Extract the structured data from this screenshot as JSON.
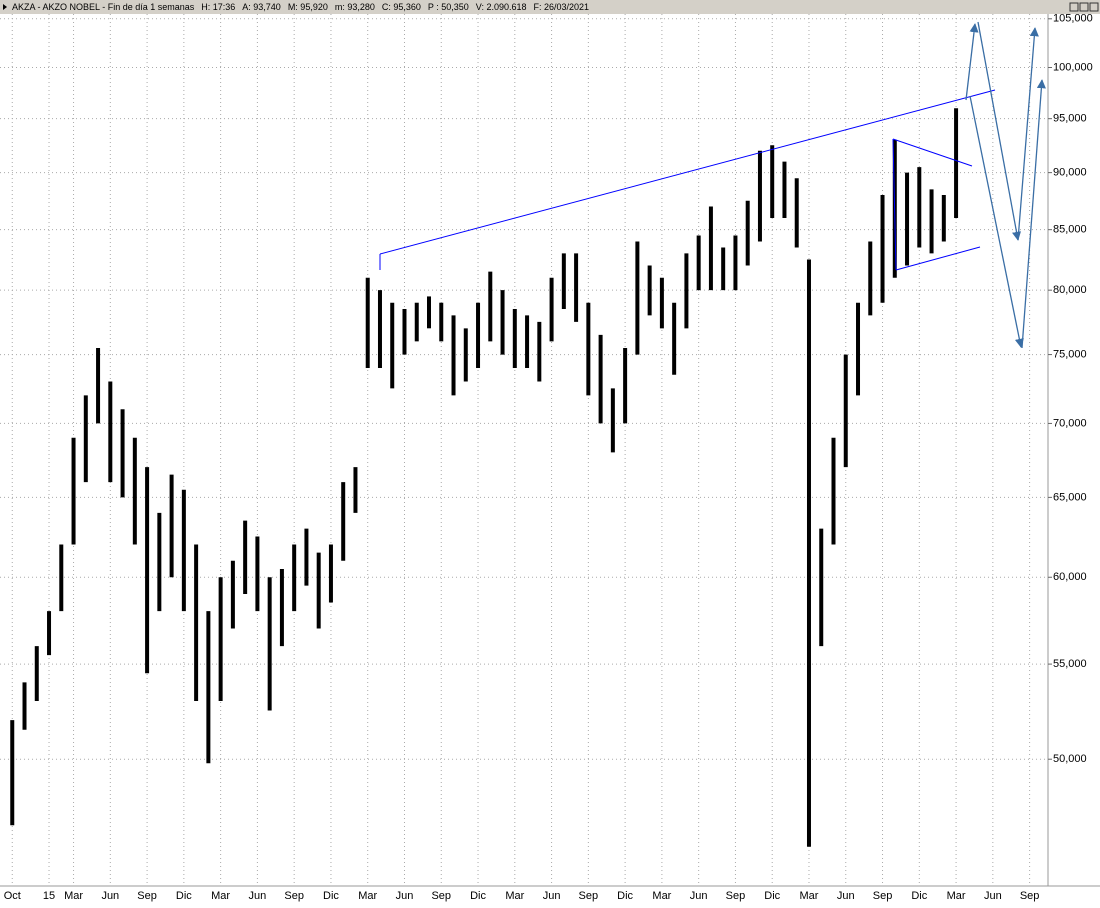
{
  "chart_data": {
    "type": "range-bar",
    "header": [
      "AKZA - AKZO NOBEL - Fin de día 1 semanas",
      "H: 17:36",
      "A: 93,740",
      "M: 95,920",
      "m: 93,280",
      "C: 95,360",
      "P : 50,350",
      "V: 2.090.618",
      "F: 26/03/2021"
    ],
    "color": "#000000",
    "log_scale": true,
    "grid": true,
    "x": [
      0,
      1,
      2,
      3,
      4,
      5,
      6,
      7,
      8,
      9,
      10,
      11,
      12,
      13,
      14,
      15,
      16,
      17,
      18,
      19,
      20,
      21,
      22,
      23,
      24,
      25,
      26,
      27,
      28,
      29,
      30,
      31,
      32,
      33,
      34,
      35,
      36,
      37,
      38,
      39,
      40,
      41,
      42,
      43,
      44,
      45,
      46,
      47,
      48,
      49,
      50,
      51,
      52,
      53,
      54,
      55,
      56,
      57,
      58,
      59,
      60,
      61,
      62,
      63,
      64,
      65,
      66,
      67,
      68,
      69,
      70,
      71,
      72,
      73,
      74,
      75,
      76,
      77
    ],
    "low": [
      46800,
      51500,
      53000,
      55500,
      58000,
      62000,
      66000,
      70000,
      66000,
      65000,
      62000,
      54500,
      58000,
      60000,
      58000,
      53000,
      49800,
      53000,
      57000,
      59000,
      58000,
      52500,
      56000,
      58000,
      59500,
      57000,
      58500,
      61000,
      64000,
      74000,
      74000,
      72500,
      75000,
      76000,
      77000,
      76000,
      72000,
      73000,
      74000,
      76000,
      75000,
      74000,
      74000,
      73000,
      76000,
      78500,
      77500,
      72000,
      70000,
      68000,
      70000,
      75000,
      78000,
      77000,
      73500,
      77000,
      80000,
      80000,
      80000,
      80000,
      82000,
      84000,
      86000,
      86000,
      83500,
      45800,
      56000,
      62000,
      67000,
      72000,
      78000,
      79000,
      81000,
      82000,
      83500,
      83000,
      84000,
      86000
    ],
    "high": [
      52000,
      54000,
      56000,
      58000,
      62000,
      69000,
      72000,
      75500,
      73000,
      71000,
      69000,
      67000,
      64000,
      66500,
      65500,
      62000,
      58000,
      60000,
      61000,
      63500,
      62500,
      60000,
      60500,
      62000,
      63000,
      61500,
      62000,
      66000,
      67000,
      81000,
      80000,
      79000,
      78500,
      79000,
      79500,
      79000,
      78000,
      77000,
      79000,
      81500,
      80000,
      78500,
      78000,
      77500,
      81000,
      83000,
      83000,
      79000,
      76500,
      72500,
      75500,
      84000,
      82000,
      81000,
      79000,
      83000,
      84500,
      87000,
      83500,
      84500,
      87500,
      92000,
      92500,
      91000,
      89500,
      82500,
      63000,
      69000,
      75000,
      79000,
      84000,
      88000,
      93000,
      90000,
      90500,
      88500,
      88000,
      96000
    ],
    "xlim": [
      -1,
      84.5
    ],
    "xticks": [
      {
        "value": 0,
        "label": "Oct"
      },
      {
        "value": 3,
        "label": "15"
      },
      {
        "value": 5,
        "label": "Mar"
      },
      {
        "value": 8,
        "label": "Jun"
      },
      {
        "value": 11,
        "label": "Sep"
      },
      {
        "value": 14,
        "label": "Dic"
      },
      {
        "value": 17,
        "label": "Mar"
      },
      {
        "value": 20,
        "label": "Jun"
      },
      {
        "value": 23,
        "label": "Sep"
      },
      {
        "value": 26,
        "label": "Dic"
      },
      {
        "value": 29,
        "label": "Mar"
      },
      {
        "value": 32,
        "label": "Jun"
      },
      {
        "value": 35,
        "label": "Sep"
      },
      {
        "value": 38,
        "label": "Dic"
      },
      {
        "value": 41,
        "label": "Mar"
      },
      {
        "value": 44,
        "label": "Jun"
      },
      {
        "value": 47,
        "label": "Sep"
      },
      {
        "value": 50,
        "label": "Dic"
      },
      {
        "value": 53,
        "label": "Mar"
      },
      {
        "value": 56,
        "label": "Jun"
      },
      {
        "value": 59,
        "label": "Sep"
      },
      {
        "value": 62,
        "label": "Dic"
      },
      {
        "value": 65,
        "label": "Mar"
      },
      {
        "value": 68,
        "label": "Jun"
      },
      {
        "value": 71,
        "label": "Sep"
      },
      {
        "value": 74,
        "label": "Dic"
      },
      {
        "value": 77,
        "label": "Mar"
      },
      {
        "value": 80,
        "label": "Jun"
      },
      {
        "value": 83,
        "label": "Sep"
      }
    ],
    "ylim": [
      44300,
      105400
    ],
    "yticks": [
      {
        "value": 50000,
        "label": "50,000"
      },
      {
        "value": 55000,
        "label": "55,000"
      },
      {
        "value": 60000,
        "label": "60,000"
      },
      {
        "value": 65000,
        "label": "65,000"
      },
      {
        "value": 70000,
        "label": "70,000"
      },
      {
        "value": 75000,
        "label": "75,000"
      },
      {
        "value": 80000,
        "label": "80,000"
      },
      {
        "value": 85000,
        "label": "85,000"
      },
      {
        "value": 90000,
        "label": "90,000"
      },
      {
        "value": 95000,
        "label": "95,000"
      },
      {
        "value": 100000,
        "label": "100,000"
      },
      {
        "value": 105000,
        "label": "105,000"
      }
    ]
  }
}
